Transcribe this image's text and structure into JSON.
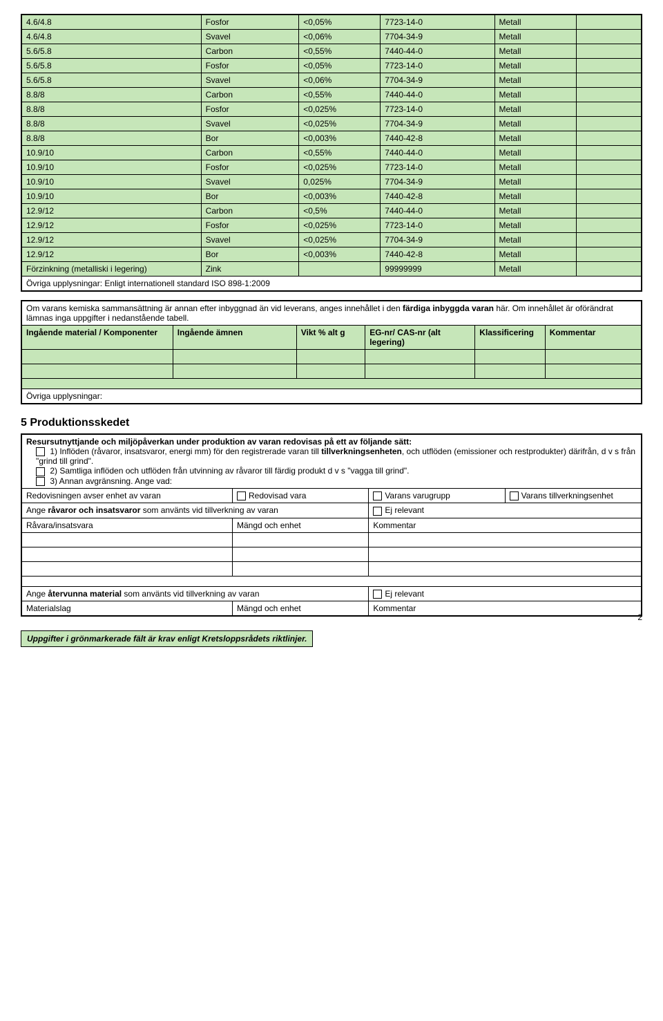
{
  "chem_table": {
    "rows": [
      {
        "a": "4.6/4.8",
        "b": "Fosfor",
        "c": "<0,05%",
        "d": "7723-14-0",
        "e": "Metall"
      },
      {
        "a": "4.6/4.8",
        "b": "Svavel",
        "c": "<0,06%",
        "d": "7704-34-9",
        "e": "Metall"
      },
      {
        "a": "5.6/5.8",
        "b": "Carbon",
        "c": "<0,55%",
        "d": "7440-44-0",
        "e": "Metall"
      },
      {
        "a": "5.6/5.8",
        "b": "Fosfor",
        "c": "<0,05%",
        "d": "7723-14-0",
        "e": "Metall"
      },
      {
        "a": "5.6/5.8",
        "b": "Svavel",
        "c": "<0,06%",
        "d": "7704-34-9",
        "e": "Metall"
      },
      {
        "a": "8.8/8",
        "b": "Carbon",
        "c": "<0,55%",
        "d": "7440-44-0",
        "e": "Metall"
      },
      {
        "a": "8.8/8",
        "b": "Fosfor",
        "c": "<0,025%",
        "d": "7723-14-0",
        "e": "Metall"
      },
      {
        "a": "8.8/8",
        "b": "Svavel",
        "c": "<0,025%",
        "d": "7704-34-9",
        "e": "Metall"
      },
      {
        "a": "8.8/8",
        "b": "Bor",
        "c": "<0,003%",
        "d": "7440-42-8",
        "e": "Metall"
      },
      {
        "a": "10.9/10",
        "b": "Carbon",
        "c": "<0,55%",
        "d": "7440-44-0",
        "e": "Metall"
      },
      {
        "a": "10.9/10",
        "b": "Fosfor",
        "c": "<0,025%",
        "d": "7723-14-0",
        "e": "Metall"
      },
      {
        "a": "10.9/10",
        "b": "Svavel",
        "c": "0,025%",
        "d": "7704-34-9",
        "e": "Metall"
      },
      {
        "a": "10.9/10",
        "b": "Bor",
        "c": "<0,003%",
        "d": "7440-42-8",
        "e": "Metall"
      },
      {
        "a": "12.9/12",
        "b": "Carbon",
        "c": "<0,5%",
        "d": "7440-44-0",
        "e": "Metall"
      },
      {
        "a": "12.9/12",
        "b": "Fosfor",
        "c": "<0,025%",
        "d": "7723-14-0",
        "e": "Metall"
      },
      {
        "a": "12.9/12",
        "b": "Svavel",
        "c": "<0,025%",
        "d": "7704-34-9",
        "e": "Metall"
      },
      {
        "a": "12.9/12",
        "b": "Bor",
        "c": "<0,003%",
        "d": "7440-42-8",
        "e": "Metall"
      },
      {
        "a": "Förzinkning (metalliski i legering)",
        "b": "Zink",
        "c": "",
        "d": "99999999",
        "e": "Metall"
      }
    ],
    "footer": "Övriga upplysningar: Enligt internationell standard ISO 898-1:2009"
  },
  "kem_box": {
    "intro": "Om varans kemiska sammansättning är annan efter inbyggnad än vid leverans, anges innehållet i den ",
    "intro_bold1": "färdiga inbyggda varan",
    "intro2": " här. Om innehållet är oförändrat lämnas inga uppgifter i nedanstående tabell.",
    "headers": {
      "h1": "Ingående material / Komponenter",
      "h2": "Ingående ämnen",
      "h3": "Vikt % alt g",
      "h4": "EG-nr/ CAS-nr (alt legering)",
      "h5": "Klassificering",
      "h6": "Kommentar"
    },
    "footer": "Övriga upplysningar:"
  },
  "section5": {
    "title": "5  Produktionsskedet",
    "lead": "Resursutnyttjande och miljöpåverkan under produktion av varan redovisas på ett av följande sätt:",
    "opt1a": "1) Inflöden (råvaror, insatsvaror, energi mm) för den registrerade varan till ",
    "opt1b": "tillverkningsenheten",
    "opt1c": ", och utflöden (emissioner och restprodukter) därifrån, d v s från \"grind till grind\".",
    "opt2": "2) Samtliga inflöden och utflöden från utvinning av råvaror till färdig produkt d v s \"vagga till grind\".",
    "opt3": "3) Annan avgränsning. Ange vad:",
    "row1_label": "Redovisningen avser enhet av varan",
    "row1_opt1": "Redovisad vara",
    "row1_opt2": "Varans varugrupp",
    "row1_opt3": "Varans tillverkningsenhet",
    "row2_label_a": "Ange ",
    "row2_label_b": "råvaror och insatsvaror",
    "row2_label_c": " som använts vid tillverkning av varan",
    "row2_opt": "Ej relevant",
    "row3_h1": "Råvara/insatsvara",
    "row3_h2": "Mängd och enhet",
    "row3_h3": "Kommentar",
    "row4_label_a": "Ange ",
    "row4_label_b": "återvunna material",
    "row4_label_c": " som använts vid tillverkning av varan",
    "row4_opt": "Ej relevant",
    "row5_h1": "Materialslag",
    "row5_h2": "Mängd och enhet",
    "row5_h3": "Kommentar"
  },
  "footer_text": "Uppgifter i grönmarkerade fält är krav enligt Kretsloppsrådets riktlinjer.",
  "page_number": "2"
}
